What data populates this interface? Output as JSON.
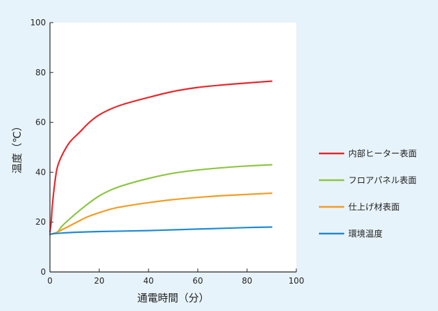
{
  "chart_data": {
    "type": "line",
    "xlabel": "通電時間（分）",
    "ylabel": "温度（℃）",
    "xlim": [
      0,
      100
    ],
    "ylim": [
      0,
      100
    ],
    "x_ticks": [
      0,
      20,
      40,
      60,
      80,
      100
    ],
    "y_ticks": [
      0,
      20,
      40,
      60,
      80,
      100
    ],
    "grid": false,
    "legend_position": "right",
    "series": [
      {
        "name": "内部ヒーター表面",
        "color": "#e8262b",
        "points": [
          [
            0,
            16
          ],
          [
            0.5,
            20
          ],
          [
            1,
            27
          ],
          [
            2,
            36
          ],
          [
            3,
            42
          ],
          [
            5,
            47
          ],
          [
            8,
            52
          ],
          [
            12,
            56
          ],
          [
            16,
            60
          ],
          [
            20,
            63
          ],
          [
            25,
            65.5
          ],
          [
            30,
            67.3
          ],
          [
            40,
            70
          ],
          [
            50,
            72.4
          ],
          [
            60,
            74
          ],
          [
            70,
            75
          ],
          [
            80,
            75.8
          ],
          [
            90,
            76.5
          ]
        ]
      },
      {
        "name": "フロアパネル表面",
        "color": "#8cc63f",
        "points": [
          [
            0,
            15
          ],
          [
            3,
            16
          ],
          [
            5,
            18.5
          ],
          [
            10,
            23
          ],
          [
            15,
            27
          ],
          [
            20,
            30.5
          ],
          [
            25,
            33
          ],
          [
            30,
            34.8
          ],
          [
            40,
            37.5
          ],
          [
            50,
            39.6
          ],
          [
            60,
            40.9
          ],
          [
            70,
            41.8
          ],
          [
            80,
            42.5
          ],
          [
            90,
            43
          ]
        ]
      },
      {
        "name": "仕上げ材表面",
        "color": "#f39b1e",
        "points": [
          [
            0,
            15
          ],
          [
            3,
            16
          ],
          [
            5,
            17
          ],
          [
            10,
            19.5
          ],
          [
            15,
            22
          ],
          [
            20,
            23.8
          ],
          [
            25,
            25.3
          ],
          [
            30,
            26.3
          ],
          [
            40,
            27.8
          ],
          [
            50,
            29
          ],
          [
            60,
            29.9
          ],
          [
            70,
            30.6
          ],
          [
            80,
            31.1
          ],
          [
            90,
            31.6
          ]
        ]
      },
      {
        "name": "環境温度",
        "color": "#1c8ad6",
        "points": [
          [
            0,
            15.2
          ],
          [
            5,
            15.6
          ],
          [
            10,
            15.9
          ],
          [
            20,
            16.2
          ],
          [
            30,
            16.4
          ],
          [
            40,
            16.6
          ],
          [
            50,
            16.9
          ],
          [
            60,
            17.2
          ],
          [
            70,
            17.5
          ],
          [
            80,
            17.8
          ],
          [
            90,
            18
          ]
        ]
      }
    ]
  }
}
